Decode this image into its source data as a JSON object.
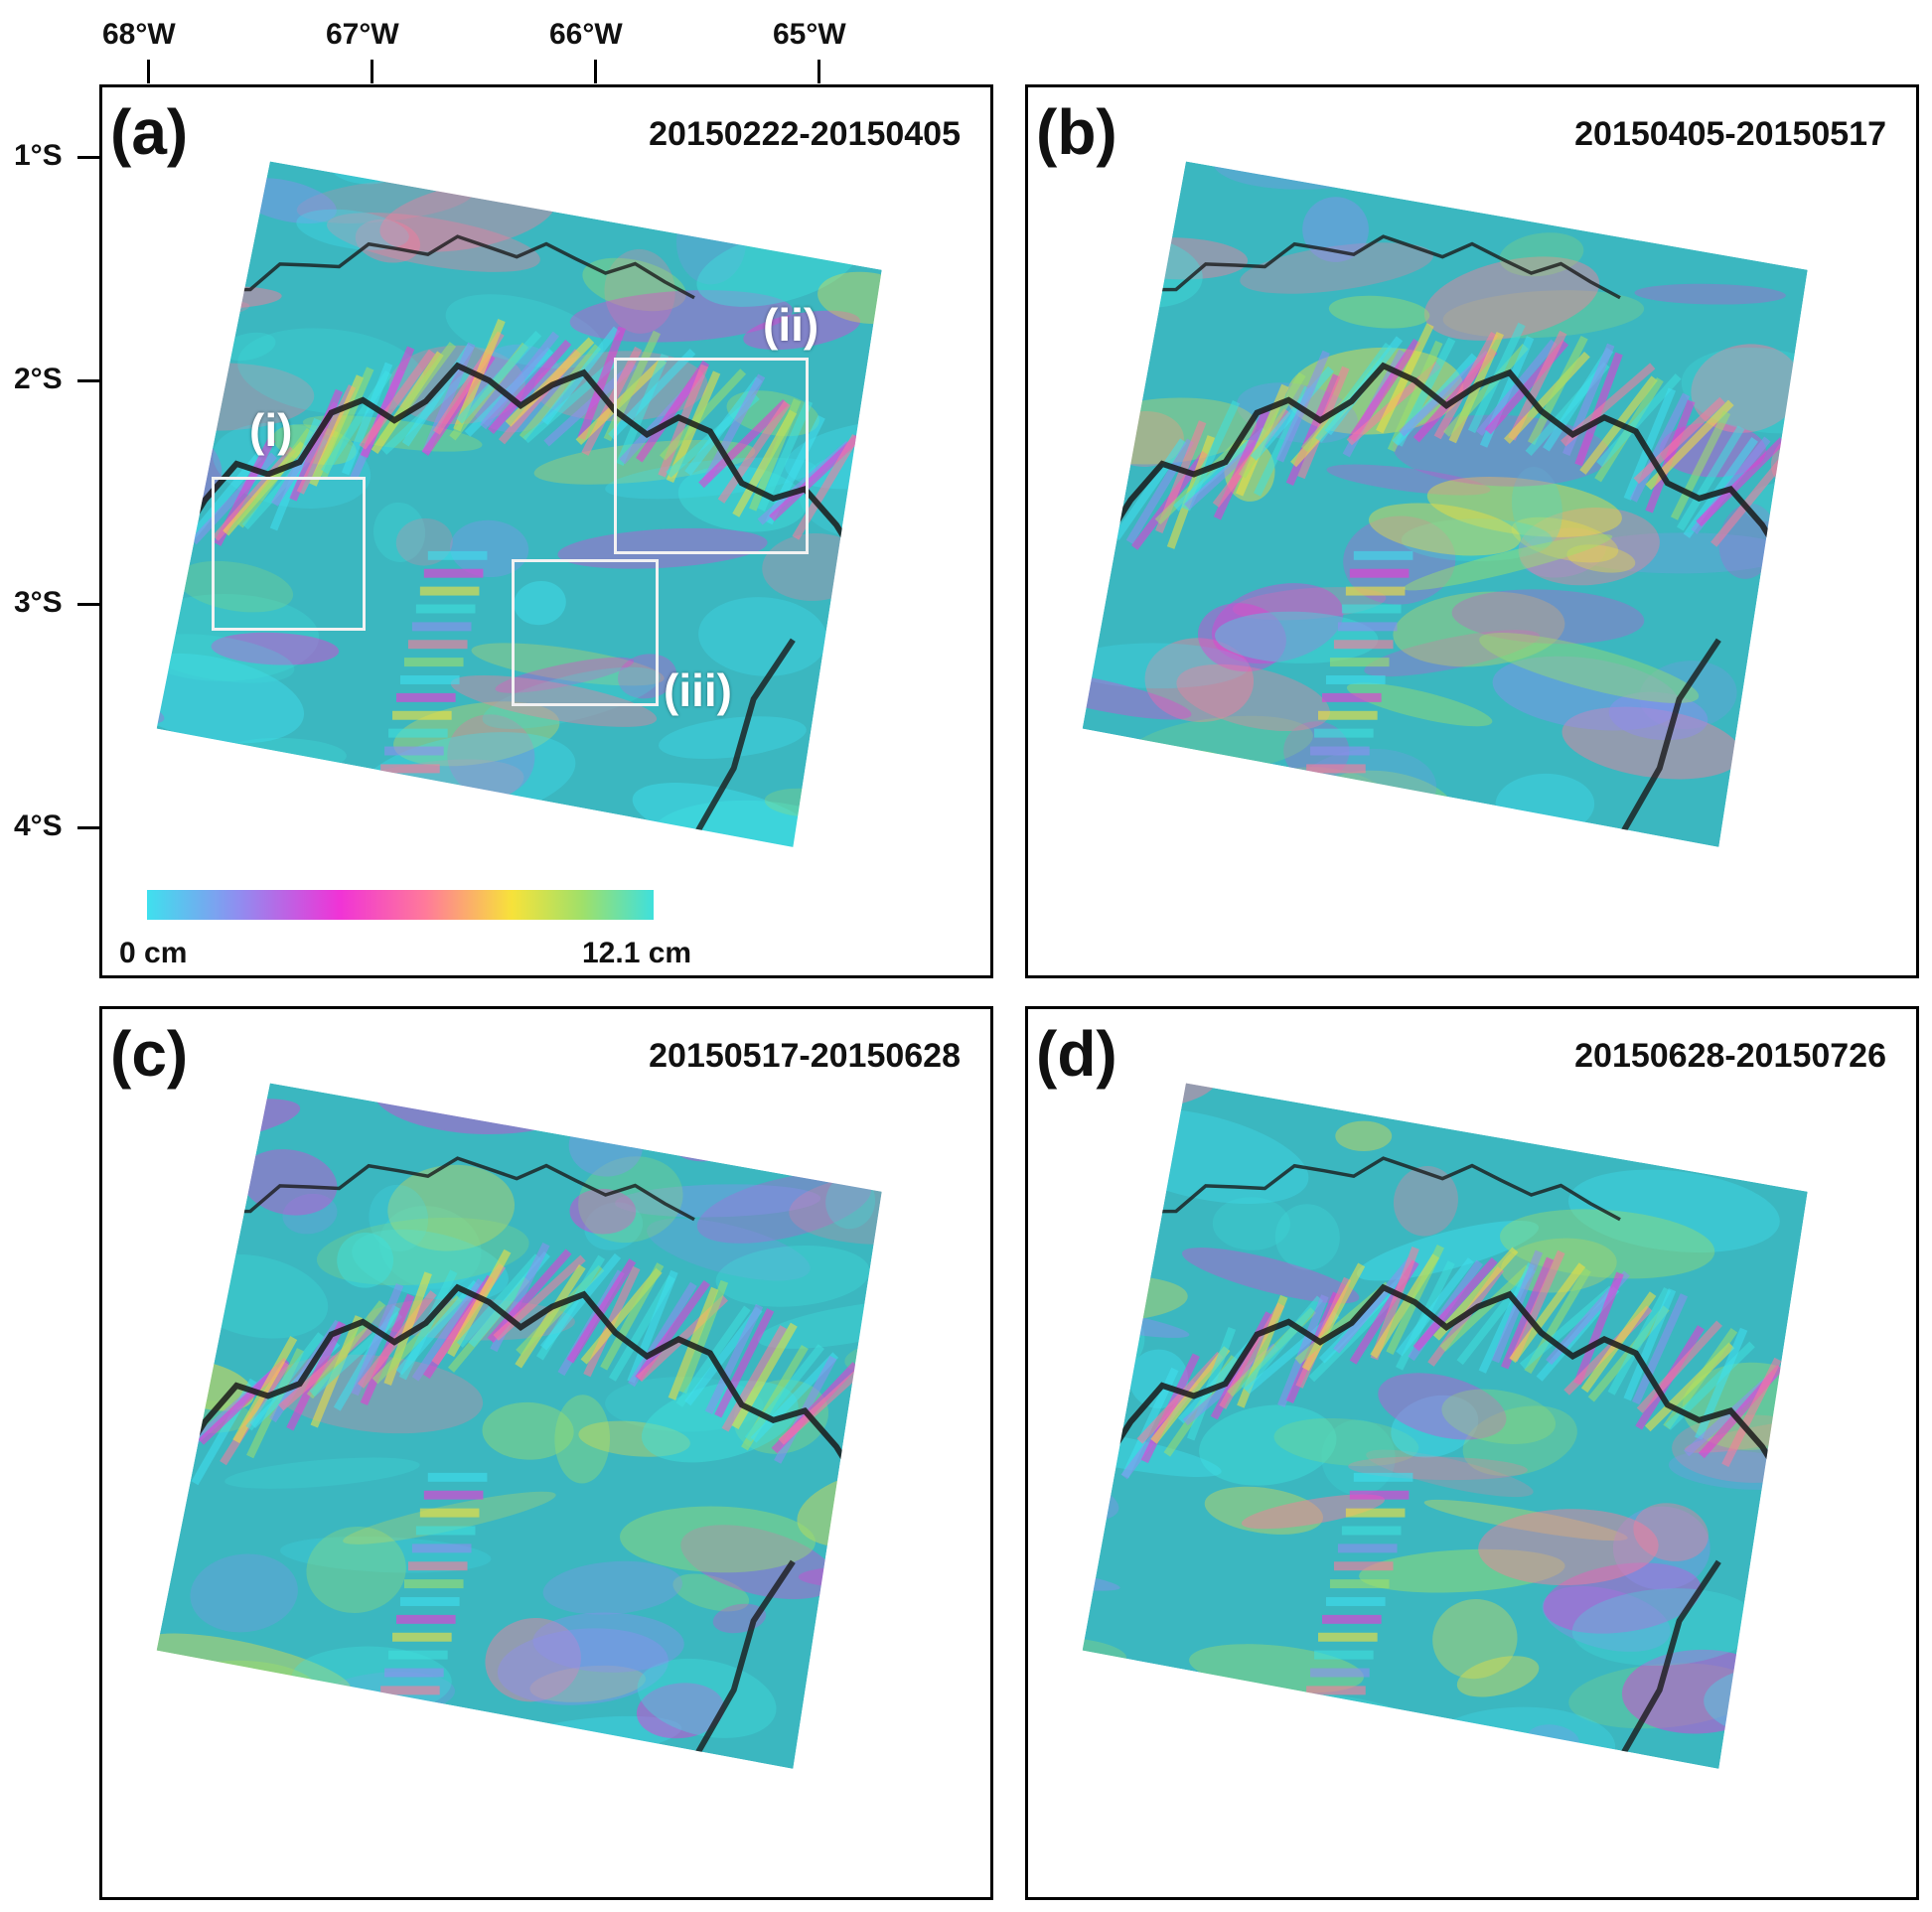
{
  "axes": {
    "longitude_ticks": [
      "68°W",
      "67°W",
      "66°W",
      "65°W"
    ],
    "latitude_ticks": [
      "1°S",
      "2°S",
      "3°S",
      "4°S"
    ]
  },
  "panels": [
    {
      "letter": "(a)",
      "date_range": "20150222-20150405"
    },
    {
      "letter": "(b)",
      "date_range": "20150405-20150517"
    },
    {
      "letter": "(c)",
      "date_range": "20150517-20150628"
    },
    {
      "letter": "(d)",
      "date_range": "20150628-20150726"
    }
  ],
  "regions": [
    {
      "label": "(i)"
    },
    {
      "label": "(ii)"
    },
    {
      "label": "(iii)"
    }
  ],
  "colorbar": {
    "min_label": "0 cm",
    "max_label": "12.1 cm",
    "colors": [
      "#3fe0ee",
      "#8f8ef0",
      "#f033d6",
      "#ff7a9a",
      "#f7e23a",
      "#9fe06a",
      "#3fe0dc"
    ]
  }
}
